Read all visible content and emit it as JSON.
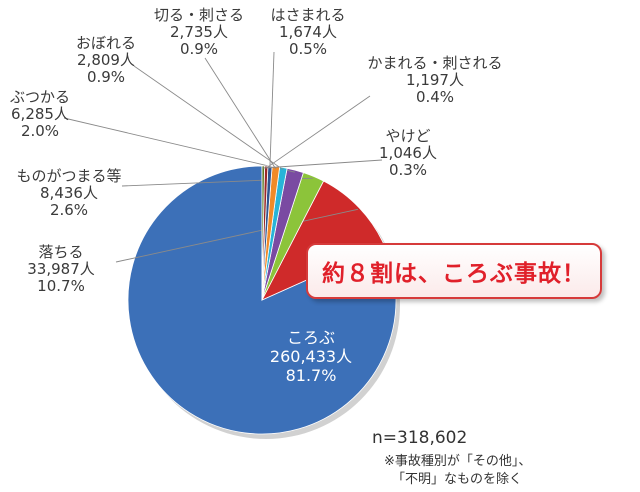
{
  "chart_data": {
    "type": "pie",
    "slices": [
      {
        "name": "ころぶ",
        "count": "260,433人",
        "pct": "81.7%",
        "value": 81.7,
        "color": "#3c70b8"
      },
      {
        "name": "落ちる",
        "count": "33,987人",
        "pct": "10.7%",
        "value": 10.7,
        "color": "#cf2a2a"
      },
      {
        "name": "ものがつまる等",
        "count": "8,436人",
        "pct": "2.6%",
        "value": 2.6,
        "color": "#8cc43a"
      },
      {
        "name": "ぶつかる",
        "count": "6,285人",
        "pct": "2.0%",
        "value": 2.0,
        "color": "#7a4aa2"
      },
      {
        "name": "おぼれる",
        "count": "2,809人",
        "pct": "0.9%",
        "value": 0.9,
        "color": "#28b4d8"
      },
      {
        "name": "切る・刺さる",
        "count": "2,735人",
        "pct": "0.9%",
        "value": 0.9,
        "color": "#f08a28"
      },
      {
        "name": "はさまれる",
        "count": "1,674人",
        "pct": "0.5%",
        "value": 0.5,
        "color": "#2f5590"
      },
      {
        "name": "かまれる・刺される",
        "count": "1,197人",
        "pct": "0.4%",
        "value": 0.4,
        "color": "#9a2828"
      },
      {
        "name": "やけど",
        "count": "1,046人",
        "pct": "0.3%",
        "value": 0.3,
        "color": "#5a7a24"
      }
    ]
  },
  "callout": "約８割は、ころぶ事故！",
  "total": "n=318,602",
  "note_line1": "※事故種別が「その他」、",
  "note_line2": "「不明」なものを除く"
}
